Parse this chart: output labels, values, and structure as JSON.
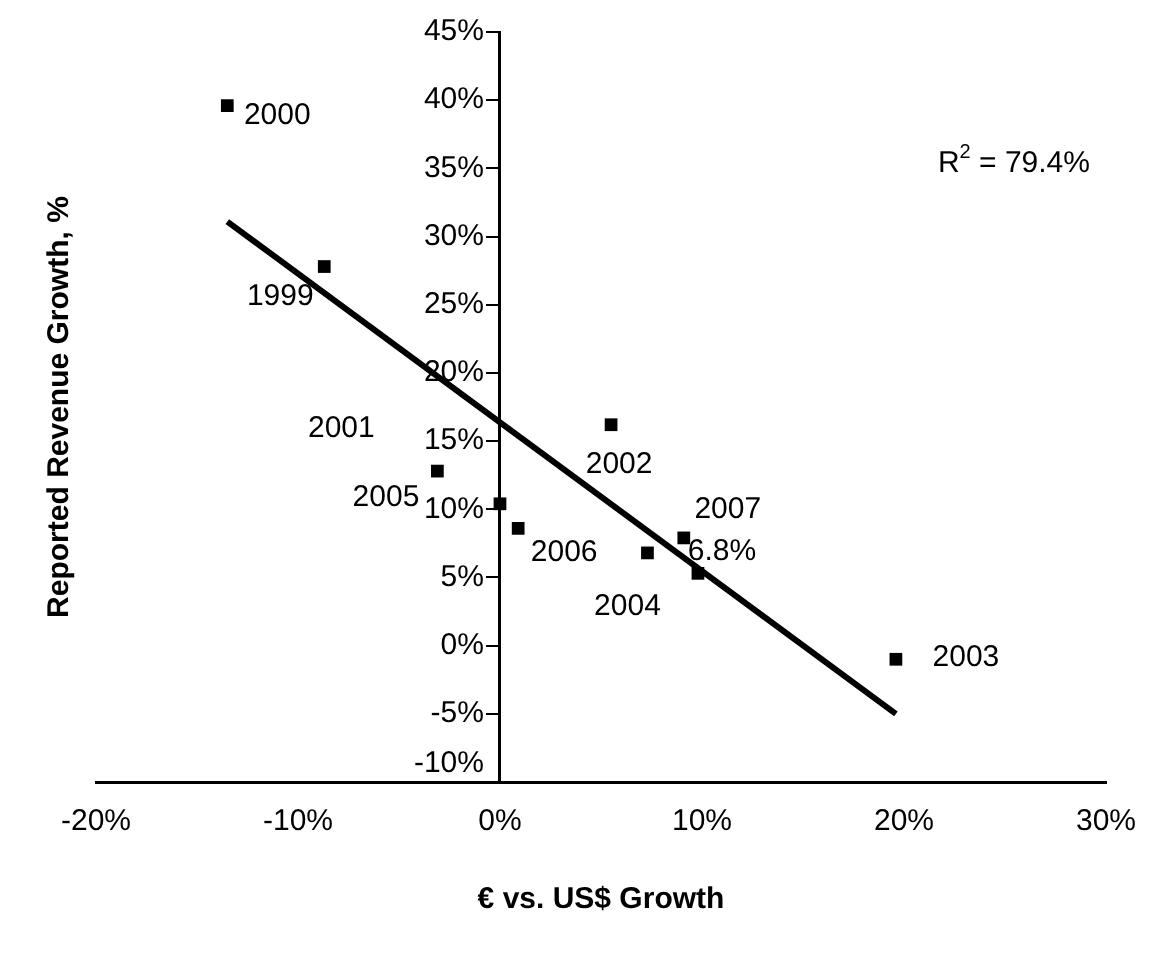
{
  "chart_data": {
    "type": "scatter",
    "xlabel": "€ vs. US$ Growth",
    "ylabel": "Reported Revenue Growth, %",
    "series": [
      {
        "color": "#000000",
        "marker": "square",
        "x": [
          -13.5,
          -8.7,
          -3.1,
          0.0,
          0.9,
          5.5,
          7.3,
          9.1,
          9.8,
          19.6
        ],
        "values": [
          39.6,
          27.8,
          12.8,
          10.4,
          8.6,
          16.2,
          6.8,
          7.9,
          5.3,
          -1.0
        ]
      },
      {
        "type": "line",
        "color": "#000000",
        "x": [
          -13.5,
          19.6
        ],
        "values": [
          31.1,
          -5.0
        ]
      }
    ],
    "xlim": [
      -20,
      30
    ],
    "xticks": [
      {
        "value": -20,
        "label": "-20%"
      },
      {
        "value": -10,
        "label": "-10%"
      },
      {
        "value": 0,
        "label": "0%"
      },
      {
        "value": 10,
        "label": "10%"
      },
      {
        "value": 20,
        "label": "20%"
      },
      {
        "value": 30,
        "label": "30%"
      }
    ],
    "ylim": [
      -10,
      45
    ],
    "yticks": [
      {
        "value": -10,
        "label": "-10%"
      },
      {
        "value": -5,
        "label": "-5%"
      },
      {
        "value": 0,
        "label": "0%"
      },
      {
        "value": 5,
        "label": "5%"
      },
      {
        "value": 10,
        "label": "10%"
      },
      {
        "value": 15,
        "label": "15%"
      },
      {
        "value": 20,
        "label": "20%"
      },
      {
        "value": 25,
        "label": "25%"
      },
      {
        "value": 30,
        "label": "30%"
      },
      {
        "value": 35,
        "label": "35%"
      },
      {
        "value": 40,
        "label": "40%"
      },
      {
        "value": 45,
        "label": "45%"
      }
    ],
    "annotations": [
      {
        "text": "2000",
        "x": -13.5,
        "y": 39.6
      },
      {
        "text": "1999",
        "x": -8.7,
        "y": 27.8
      },
      {
        "text": "2001",
        "x": -3.1,
        "y": 12.8
      },
      {
        "text": "2005",
        "x": 0.0,
        "y": 10.4
      },
      {
        "text": "2006",
        "x": 0.9,
        "y": 8.6
      },
      {
        "text": "2002",
        "x": 5.5,
        "y": 16.2
      },
      {
        "text": "2004",
        "x": 7.3,
        "y": 6.8
      },
      {
        "text": "2007",
        "x": 9.1,
        "y": 7.9
      },
      {
        "text": "6.8%",
        "x": 9.8,
        "y": 5.3
      },
      {
        "text": "2003",
        "x": 19.6,
        "y": -1.0
      },
      "R$^{2}$ = 79.4%"
    ],
    "grid": false,
    "legend": false,
    "line_style": "solid"
  }
}
